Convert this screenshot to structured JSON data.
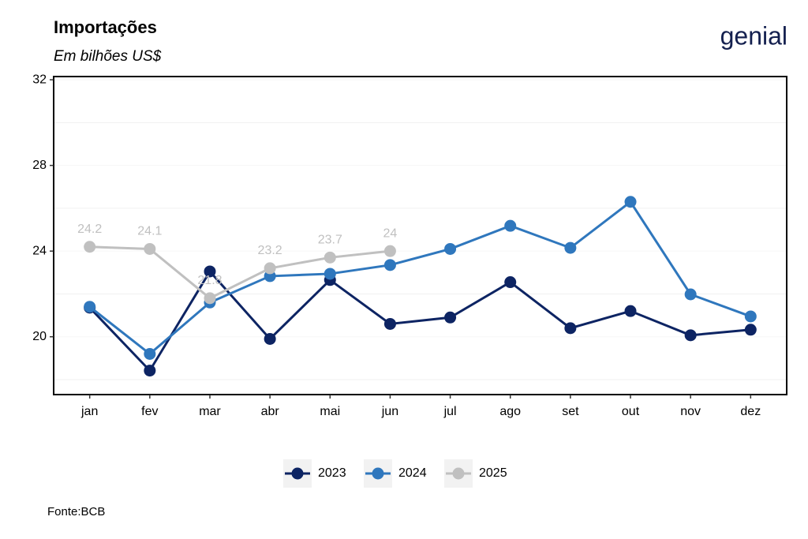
{
  "chart_data": {
    "type": "line",
    "title": "Importações",
    "subtitle": "Em bilhões US$",
    "logo": "genial",
    "source": "Fonte:BCB",
    "categories": [
      "jan",
      "fev",
      "mar",
      "abr",
      "mai",
      "jun",
      "jul",
      "ago",
      "set",
      "out",
      "nov",
      "dez"
    ],
    "series": [
      {
        "name": "2023",
        "color": "#0d2463",
        "values": [
          21.36,
          18.42,
          23.05,
          19.9,
          22.65,
          20.6,
          20.9,
          22.55,
          20.4,
          21.2,
          20.07,
          20.33
        ]
      },
      {
        "name": "2024",
        "color": "#2f77bd",
        "values": [
          21.4,
          19.2,
          21.6,
          22.83,
          22.94,
          23.35,
          24.1,
          25.18,
          24.15,
          26.3,
          21.98,
          20.95
        ]
      },
      {
        "name": "2025",
        "color": "#c0c0c0",
        "values": [
          24.2,
          24.1,
          21.8,
          23.2,
          23.7,
          24,
          null,
          null,
          null,
          null,
          null,
          null
        ],
        "show_labels": true
      }
    ],
    "ylim": [
      17.3,
      32.15
    ],
    "yticks": [
      20,
      24,
      28,
      32
    ],
    "y_minor_ticks": [
      18,
      22,
      26,
      30
    ],
    "grid": true,
    "legend": "bottom"
  }
}
